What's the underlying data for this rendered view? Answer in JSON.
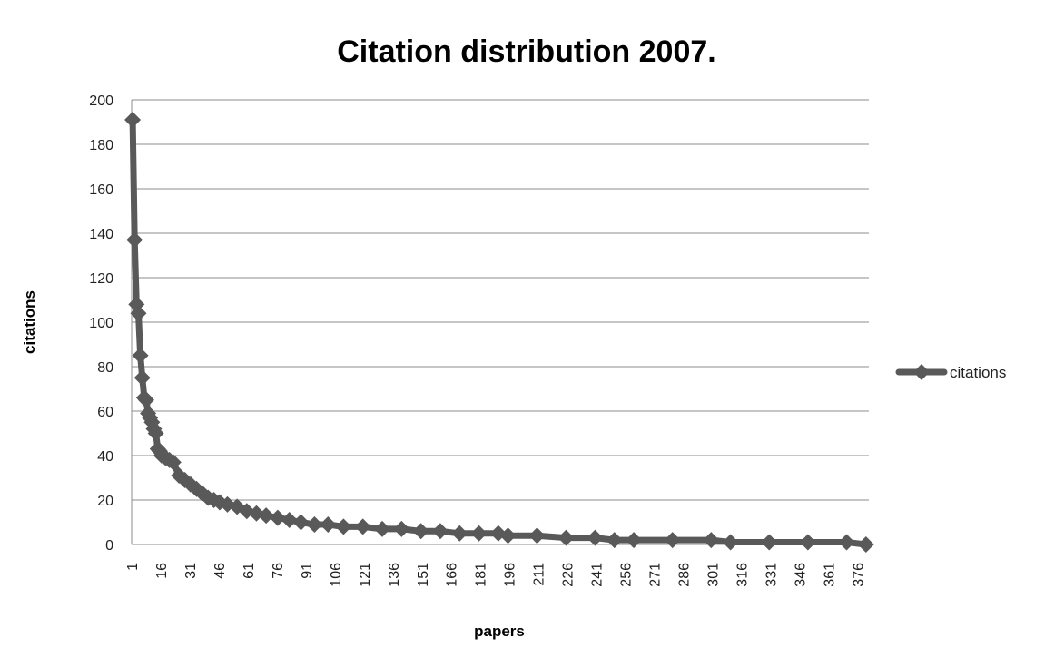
{
  "chart_data": {
    "type": "line",
    "title": "Citation distribution 2007.",
    "xlabel": "papers",
    "ylabel": "citations",
    "ylim": [
      0,
      200
    ],
    "yticks": [
      0,
      20,
      40,
      60,
      80,
      100,
      120,
      140,
      160,
      180,
      200
    ],
    "xticks": [
      1,
      16,
      31,
      46,
      61,
      76,
      91,
      106,
      121,
      136,
      151,
      166,
      181,
      196,
      211,
      226,
      241,
      256,
      271,
      286,
      301,
      316,
      331,
      346,
      361,
      376
    ],
    "x_count": 381,
    "grid": "horizontal",
    "legend_position": "right",
    "series": [
      {
        "name": "citations",
        "color": "#595959",
        "marker": "diamond",
        "values": [
          [
            1,
            191
          ],
          [
            2,
            137
          ],
          [
            3,
            108
          ],
          [
            4,
            104
          ],
          [
            5,
            85
          ],
          [
            6,
            75
          ],
          [
            7,
            66
          ],
          [
            8,
            65
          ],
          [
            9,
            59
          ],
          [
            10,
            57
          ],
          [
            11,
            55
          ],
          [
            12,
            52
          ],
          [
            13,
            50
          ],
          [
            14,
            43
          ],
          [
            15,
            42
          ],
          [
            16,
            40
          ],
          [
            18,
            39
          ],
          [
            20,
            38
          ],
          [
            22,
            37
          ],
          [
            25,
            31
          ],
          [
            28,
            29
          ],
          [
            31,
            27
          ],
          [
            34,
            25
          ],
          [
            37,
            23
          ],
          [
            40,
            21
          ],
          [
            43,
            20
          ],
          [
            46,
            19
          ],
          [
            50,
            18
          ],
          [
            55,
            17
          ],
          [
            60,
            15
          ],
          [
            65,
            14
          ],
          [
            70,
            13
          ],
          [
            76,
            12
          ],
          [
            82,
            11
          ],
          [
            88,
            10
          ],
          [
            95,
            9
          ],
          [
            102,
            9
          ],
          [
            110,
            8
          ],
          [
            120,
            8
          ],
          [
            130,
            7
          ],
          [
            140,
            7
          ],
          [
            150,
            6
          ],
          [
            160,
            6
          ],
          [
            170,
            5
          ],
          [
            180,
            5
          ],
          [
            190,
            5
          ],
          [
            195,
            4
          ],
          [
            210,
            4
          ],
          [
            225,
            3
          ],
          [
            240,
            3
          ],
          [
            250,
            2
          ],
          [
            260,
            2
          ],
          [
            280,
            2
          ],
          [
            300,
            2
          ],
          [
            310,
            1
          ],
          [
            330,
            1
          ],
          [
            350,
            1
          ],
          [
            370,
            1
          ],
          [
            380,
            0
          ]
        ]
      }
    ]
  }
}
